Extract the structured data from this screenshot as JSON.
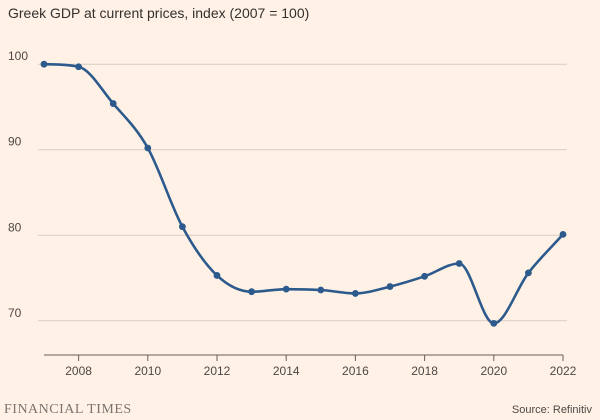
{
  "header": {
    "title": "Greek GDP at current prices, index (2007 = 100)"
  },
  "footer": {
    "brand": "FINANCIAL TIMES",
    "source": "Source: Refinitiv"
  },
  "colors": {
    "background": "#fff1e5",
    "line": "#2c5a8c",
    "grid": "#d9cdc2",
    "axis": "#66605c"
  },
  "chart_data": {
    "type": "line",
    "title": "Greek GDP at current prices, index (2007 = 100)",
    "xlabel": "",
    "ylabel": "",
    "xlim": [
      2007,
      2022
    ],
    "ylim": [
      66,
      104
    ],
    "grid": true,
    "x_ticks": [
      "2008",
      "2010",
      "2012",
      "2014",
      "2016",
      "2018",
      "2020",
      "2022"
    ],
    "y_ticks": [
      "70",
      "80",
      "90",
      "100"
    ],
    "x": [
      2007,
      2008,
      2009,
      2010,
      2011,
      2012,
      2013,
      2014,
      2015,
      2016,
      2017,
      2018,
      2019,
      2020,
      2021,
      2022
    ],
    "series": [
      {
        "values": [
          100.0,
          99.7,
          95.4,
          90.2,
          81.0,
          75.3,
          73.4,
          73.7,
          73.6,
          73.2,
          74.0,
          75.2,
          76.7,
          69.7,
          75.6,
          80.1
        ]
      }
    ]
  }
}
